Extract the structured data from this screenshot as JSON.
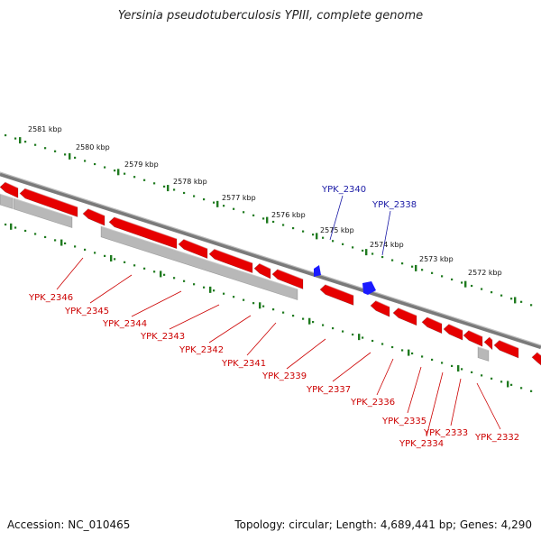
{
  "title": "Yersinia pseudotuberculosis YPIII, complete genome",
  "footer": {
    "accession_label": "Accession:",
    "accession": "NC_010465",
    "topology_label": "Topology:",
    "topology": "circular",
    "length_label": "Length:",
    "length": "4,689,441 bp",
    "genes_label": "Genes:",
    "genes": "4,290"
  },
  "scale": {
    "unit": "kbp",
    "ticks": [
      "2581 kbp",
      "2580 kbp",
      "2579 kbp",
      "2578 kbp",
      "2577 kbp",
      "2576 kbp",
      "2575 kbp",
      "2574 kbp",
      "2573 kbp",
      "2572 kbp"
    ]
  },
  "genes_forward": [
    {
      "name": "YPK_2340",
      "strand": "+"
    },
    {
      "name": "YPK_2338",
      "strand": "+"
    }
  ],
  "genes_reverse": [
    {
      "name": "YPK_2346",
      "strand": "-"
    },
    {
      "name": "YPK_2345",
      "strand": "-"
    },
    {
      "name": "YPK_2344",
      "strand": "-"
    },
    {
      "name": "YPK_2343",
      "strand": "-"
    },
    {
      "name": "YPK_2342",
      "strand": "-"
    },
    {
      "name": "YPK_2341",
      "strand": "-"
    },
    {
      "name": "YPK_2339",
      "strand": "-"
    },
    {
      "name": "YPK_2337",
      "strand": "-"
    },
    {
      "name": "YPK_2336",
      "strand": "-"
    },
    {
      "name": "YPK_2335",
      "strand": "-"
    },
    {
      "name": "YPK_2334",
      "strand": "-"
    },
    {
      "name": "YPK_2333",
      "strand": "-"
    },
    {
      "name": "YPK_2332",
      "strand": "-"
    }
  ],
  "colors": {
    "forward_gene": "#1a1aff",
    "reverse_gene": "#e60000",
    "pseudo_block": "#b8b8b8",
    "backbone": "#8a8a8a",
    "tick_dots": "#1f7a1f",
    "forward_label": "#1a1aa6",
    "reverse_label": "#cc0000"
  }
}
